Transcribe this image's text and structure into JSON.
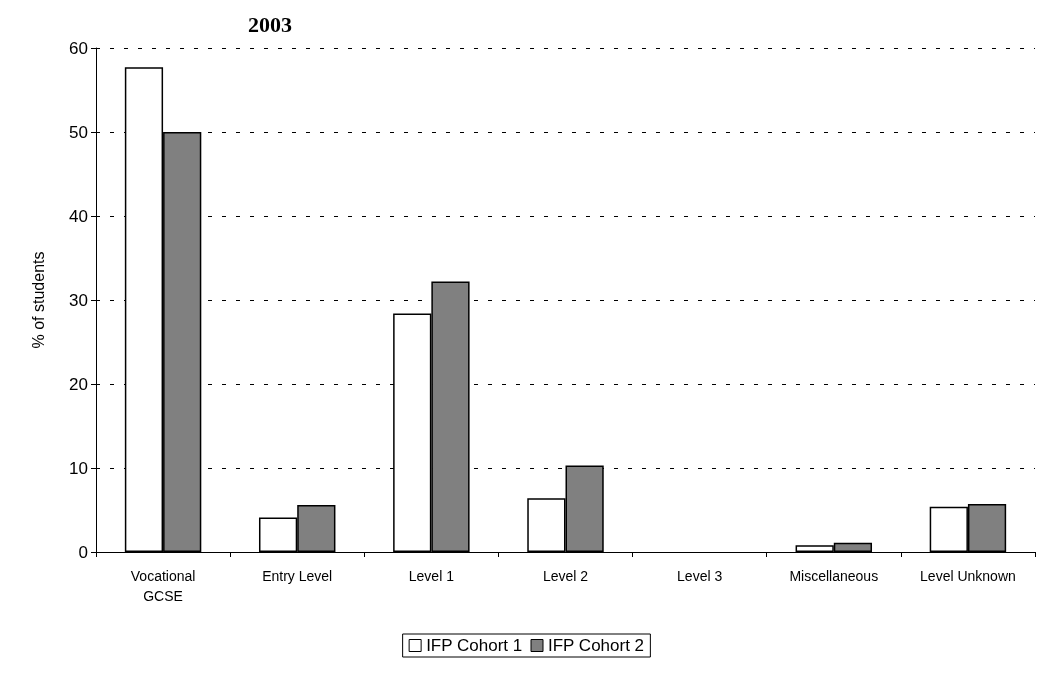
{
  "chart_data": {
    "type": "bar",
    "title": "2003",
    "ylabel": "% of students",
    "categories": [
      "Vocational\nGCSE",
      "Entry Level",
      "Level 1",
      "Level 2",
      "Level 3",
      "Miscellaneous",
      "Level Unknown"
    ],
    "series": [
      {
        "name": "IFP Cohort 1",
        "color": "#ffffff",
        "values": [
          57.7,
          4.1,
          28.4,
          6.4,
          0,
          0.8,
          5.4
        ]
      },
      {
        "name": "IFP Cohort 2",
        "color": "#808080",
        "values": [
          50.0,
          5.6,
          32.2,
          10.3,
          0,
          1.1,
          5.7
        ]
      }
    ],
    "ylim": [
      0,
      60
    ],
    "yticks": [
      0,
      10,
      20,
      30,
      40,
      50,
      60
    ],
    "grid": "y",
    "legend": "bottom"
  }
}
